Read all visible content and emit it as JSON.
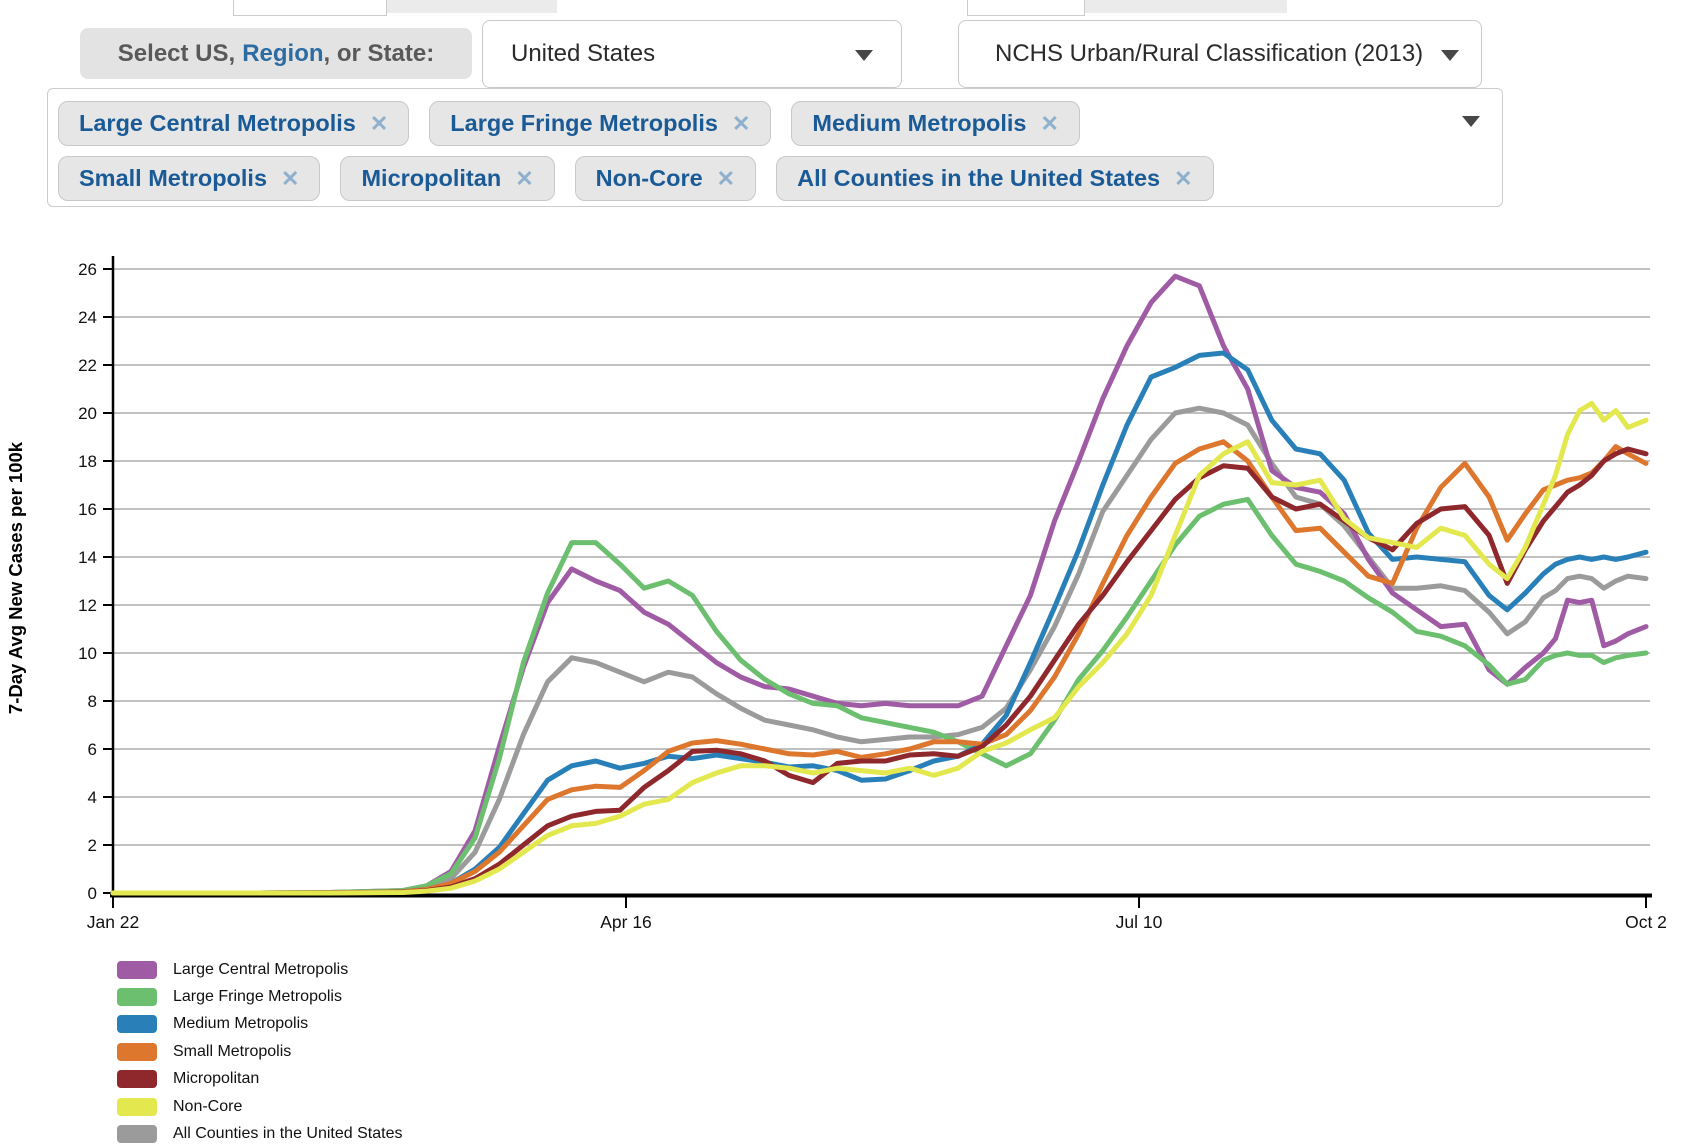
{
  "ui": {
    "colors": {
      "accent_text": "#1a5a96",
      "remove_icon": "#8fb0cd",
      "region_link": "#2d6ca2",
      "axis": "#000000",
      "grid": "#ababab"
    }
  },
  "header": {
    "select_label_prefix": "Select US,",
    "select_label_region": "Region",
    "select_label_suffix": ", or State:",
    "us_select_value": "United States",
    "classification_select_value": "NCHS Urban/Rural Classification (2013)"
  },
  "filters": {
    "remove_icon": "✕",
    "rows": [
      [
        "Large Central Metropolis",
        "Large Fringe Metropolis",
        "Medium Metropolis"
      ],
      [
        "Small Metropolis",
        "Micropolitan",
        "Non-Core",
        "All Counties in the United States"
      ]
    ]
  },
  "chart_data": {
    "type": "line",
    "title": "",
    "xlabel": "",
    "ylabel": "7-Day Avg New Cases per 100k",
    "ylim": [
      0,
      26
    ],
    "grid": true,
    "legend_position": "bottom-left",
    "y_ticks": [
      0,
      2,
      4,
      6,
      8,
      10,
      12,
      14,
      16,
      18,
      20,
      22,
      24,
      26
    ],
    "x_tick_labels": [
      {
        "day": 0,
        "label": "Jan 22"
      },
      {
        "day": 85,
        "label": "Apr 16"
      },
      {
        "day": 170,
        "label": "Jul 10"
      },
      {
        "day": 254,
        "label": "Oct 2"
      }
    ],
    "x_days": [
      0,
      12,
      24,
      36,
      48,
      52,
      56,
      60,
      64,
      68,
      72,
      76,
      80,
      84,
      88,
      92,
      96,
      100,
      104,
      108,
      112,
      116,
      120,
      124,
      128,
      132,
      136,
      140,
      144,
      148,
      152,
      156,
      160,
      164,
      168,
      172,
      176,
      180,
      184,
      188,
      192,
      196,
      200,
      204,
      208,
      212,
      216,
      220,
      224,
      228,
      231,
      234,
      237,
      239,
      241,
      243,
      245,
      247,
      249,
      251,
      254
    ],
    "series": [
      {
        "name": "Large Central Metropolis",
        "color": "#a05ba5",
        "z": 2,
        "values": [
          0,
          0,
          0,
          0.02,
          0.1,
          0.3,
          0.9,
          2.6,
          6.1,
          9.4,
          12.1,
          13.5,
          13.0,
          12.6,
          11.7,
          11.2,
          10.4,
          9.6,
          9.0,
          8.6,
          8.5,
          8.2,
          7.9,
          7.8,
          7.9,
          7.8,
          7.8,
          7.8,
          8.2,
          10.3,
          12.4,
          15.5,
          18.0,
          20.6,
          22.8,
          24.6,
          25.7,
          25.3,
          22.8,
          21.0,
          17.6,
          16.9,
          16.7,
          15.8,
          13.9,
          12.5,
          11.8,
          11.1,
          11.2,
          9.3,
          8.7,
          9.4,
          10.0,
          10.6,
          12.2,
          12.1,
          12.2,
          10.3,
          10.5,
          10.8,
          11.1
        ]
      },
      {
        "name": "Large Fringe Metropolis",
        "color": "#6cbf6e",
        "z": 3,
        "values": [
          0,
          0,
          0,
          0.02,
          0.1,
          0.3,
          0.8,
          2.3,
          5.6,
          9.6,
          12.5,
          14.6,
          14.6,
          13.7,
          12.7,
          13.0,
          12.4,
          10.9,
          9.7,
          8.9,
          8.3,
          7.9,
          7.8,
          7.3,
          7.1,
          6.9,
          6.7,
          6.3,
          5.8,
          5.3,
          5.8,
          7.2,
          8.9,
          10.1,
          11.5,
          13.0,
          14.5,
          15.7,
          16.2,
          16.4,
          14.9,
          13.7,
          13.4,
          13.0,
          12.3,
          11.7,
          10.9,
          10.7,
          10.3,
          9.5,
          8.7,
          8.9,
          9.7,
          9.9,
          10.0,
          9.9,
          9.9,
          9.6,
          9.8,
          9.9,
          10.0
        ]
      },
      {
        "name": "Medium Metropolis",
        "color": "#2980b9",
        "z": 4,
        "values": [
          0,
          0,
          0,
          0.01,
          0.05,
          0.15,
          0.4,
          1.0,
          1.9,
          3.3,
          4.7,
          5.3,
          5.5,
          5.2,
          5.4,
          5.7,
          5.6,
          5.75,
          5.6,
          5.45,
          5.25,
          5.3,
          5.1,
          4.7,
          4.75,
          5.1,
          5.5,
          5.7,
          6.2,
          7.4,
          9.6,
          11.9,
          14.3,
          17.0,
          19.5,
          21.5,
          21.9,
          22.4,
          22.5,
          21.8,
          19.7,
          18.5,
          18.3,
          17.2,
          15.0,
          13.9,
          14.0,
          13.9,
          13.8,
          12.4,
          11.8,
          12.5,
          13.3,
          13.7,
          13.9,
          14.0,
          13.9,
          14.0,
          13.9,
          14.0,
          14.2
        ]
      },
      {
        "name": "Small Metropolis",
        "color": "#dd772e",
        "z": 5,
        "values": [
          0,
          0,
          0,
          0.01,
          0.05,
          0.15,
          0.4,
          0.9,
          1.7,
          2.8,
          3.9,
          4.3,
          4.45,
          4.4,
          5.1,
          5.9,
          6.25,
          6.35,
          6.2,
          6.0,
          5.8,
          5.75,
          5.9,
          5.65,
          5.8,
          6.0,
          6.3,
          6.3,
          6.2,
          6.6,
          7.6,
          9.0,
          10.8,
          12.9,
          14.9,
          16.5,
          17.9,
          18.5,
          18.8,
          18.0,
          16.5,
          15.1,
          15.2,
          14.2,
          13.2,
          12.9,
          15.2,
          16.9,
          17.9,
          16.5,
          14.7,
          15.8,
          16.8,
          17.0,
          17.2,
          17.3,
          17.5,
          18.0,
          18.6,
          18.3,
          17.9
        ]
      },
      {
        "name": "Micropolitan",
        "color": "#8e282c",
        "z": 6,
        "values": [
          0,
          0,
          0,
          0.01,
          0.03,
          0.1,
          0.25,
          0.6,
          1.2,
          2.0,
          2.8,
          3.2,
          3.4,
          3.45,
          4.4,
          5.1,
          5.9,
          5.95,
          5.8,
          5.5,
          4.9,
          4.6,
          5.4,
          5.5,
          5.5,
          5.75,
          5.8,
          5.7,
          6.1,
          7.0,
          8.2,
          9.7,
          11.2,
          12.4,
          13.8,
          15.1,
          16.4,
          17.3,
          17.8,
          17.7,
          16.5,
          16.0,
          16.2,
          15.5,
          14.8,
          14.3,
          15.4,
          16.0,
          16.1,
          14.9,
          12.9,
          14.3,
          15.5,
          16.1,
          16.7,
          17.0,
          17.4,
          18.0,
          18.3,
          18.5,
          18.3
        ]
      },
      {
        "name": "Non-Core",
        "color": "#e3e84f",
        "z": 7,
        "values": [
          0,
          0,
          0,
          0,
          0.02,
          0.08,
          0.2,
          0.5,
          1.0,
          1.7,
          2.4,
          2.8,
          2.9,
          3.2,
          3.7,
          3.9,
          4.6,
          5.0,
          5.3,
          5.3,
          5.2,
          5.0,
          5.2,
          5.1,
          5.0,
          5.2,
          4.9,
          5.2,
          5.9,
          6.25,
          6.8,
          7.3,
          8.6,
          9.6,
          10.8,
          12.4,
          14.9,
          17.4,
          18.3,
          18.8,
          17.1,
          17.0,
          17.2,
          15.6,
          14.8,
          14.6,
          14.4,
          15.2,
          14.9,
          13.7,
          13.1,
          14.4,
          16.2,
          17.4,
          19.1,
          20.1,
          20.4,
          19.7,
          20.1,
          19.4,
          19.7
        ]
      },
      {
        "name": "All Counties in the United States",
        "color": "#9b9b9b",
        "z": 1,
        "values": [
          0,
          0,
          0,
          0.02,
          0.07,
          0.2,
          0.6,
          1.7,
          3.9,
          6.6,
          8.8,
          9.8,
          9.6,
          9.2,
          8.8,
          9.2,
          9.0,
          8.3,
          7.7,
          7.2,
          7.0,
          6.8,
          6.5,
          6.3,
          6.4,
          6.5,
          6.5,
          6.6,
          6.9,
          7.7,
          9.3,
          11.1,
          13.3,
          15.9,
          17.4,
          18.9,
          20.0,
          20.2,
          20.0,
          19.5,
          17.9,
          16.5,
          16.2,
          15.3,
          14.0,
          12.7,
          12.7,
          12.8,
          12.6,
          11.7,
          10.8,
          11.3,
          12.3,
          12.6,
          13.1,
          13.2,
          13.1,
          12.7,
          13.0,
          13.2,
          13.1
        ]
      }
    ]
  }
}
